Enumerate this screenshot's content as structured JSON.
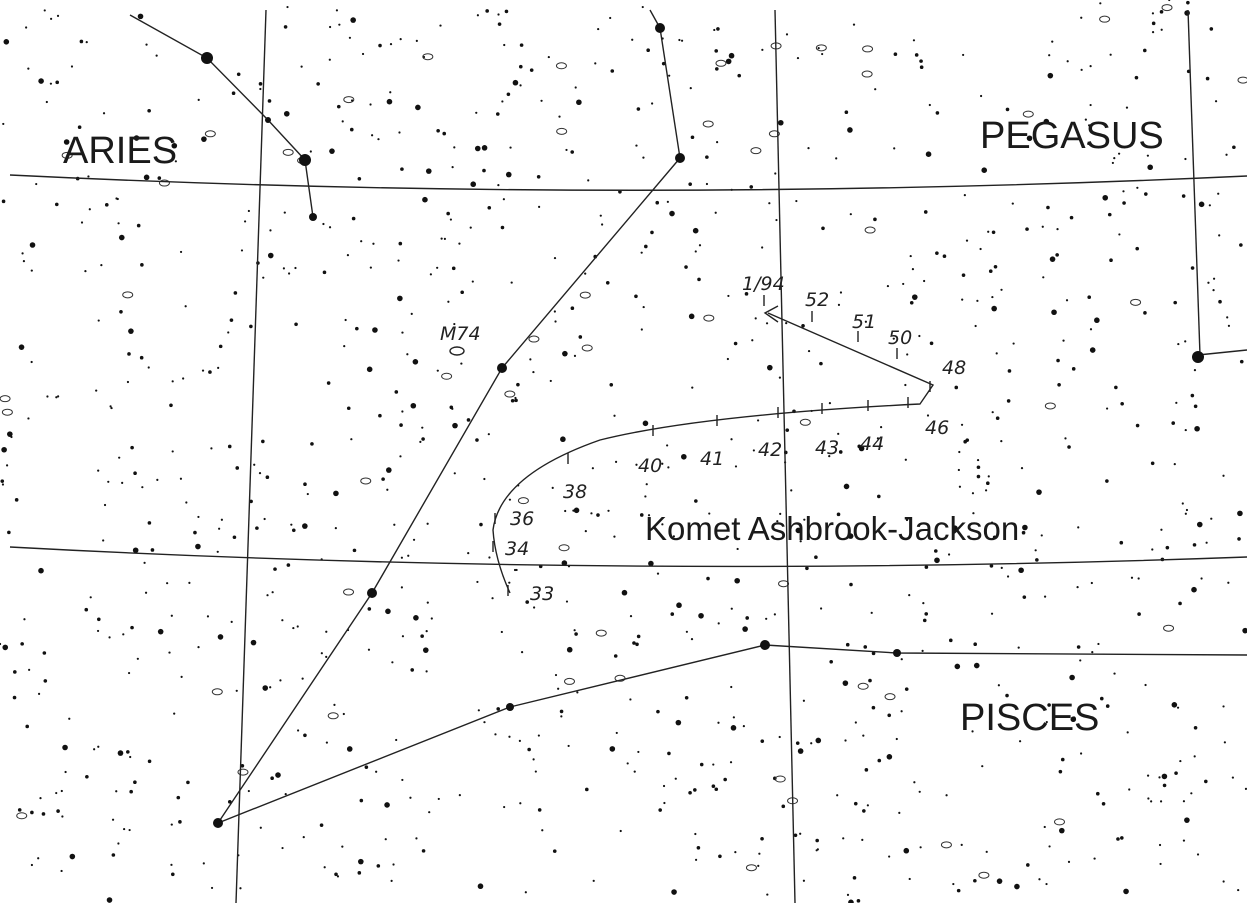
{
  "constellations": [
    "ARIES",
    "PEGASUS",
    "PISCES"
  ],
  "object": "M74",
  "comet": {
    "name": "Komet Ashbrook-Jackson",
    "dates": [
      "33",
      "34",
      "36",
      "38",
      "40",
      "41",
      "42",
      "43",
      "44",
      "46",
      "48",
      "50",
      "51",
      "52",
      "1/94"
    ]
  }
}
